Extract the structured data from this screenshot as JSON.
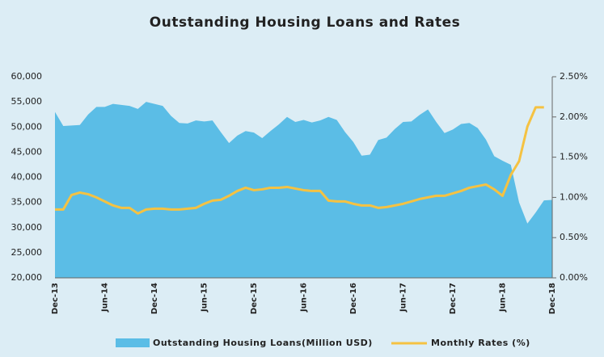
{
  "chart_data": {
    "type": "combo",
    "title": "Outstanding Housing Loans and Rates",
    "categories": [
      "Dec-13",
      null,
      null,
      null,
      null,
      null,
      "Jun-14",
      null,
      null,
      null,
      null,
      null,
      "Dec-14",
      null,
      null,
      null,
      null,
      null,
      "Jun-15",
      null,
      null,
      null,
      null,
      null,
      "Dec-15",
      null,
      null,
      null,
      null,
      null,
      "Jun-16",
      null,
      null,
      null,
      null,
      null,
      "Dec-16",
      null,
      null,
      null,
      null,
      null,
      "Jun-17",
      null,
      null,
      null,
      null,
      null,
      "Dec-17",
      null,
      null,
      null,
      null,
      null,
      "Jun-18",
      null,
      null,
      null,
      null,
      null,
      "Dec-18"
    ],
    "series": [
      {
        "name": "Outstanding Housing Loans(Million USD)",
        "type": "area",
        "color": "#5bbde6",
        "values": [
          53000,
          50200,
          50300,
          50400,
          52500,
          54000,
          54000,
          54600,
          54400,
          54200,
          53600,
          55000,
          54600,
          54200,
          52200,
          50800,
          50700,
          51300,
          51100,
          51300,
          49000,
          46800,
          48300,
          49200,
          48900,
          47800,
          49200,
          50500,
          52000,
          51000,
          51400,
          50900,
          51300,
          52000,
          51400,
          49000,
          47000,
          44300,
          44500,
          47400,
          47900,
          49600,
          51000,
          51100,
          52400,
          53500,
          51000,
          48800,
          49500,
          50600,
          50800,
          49800,
          47500,
          44200,
          43300,
          42500,
          35000,
          30800,
          33000,
          35400,
          35500
        ]
      },
      {
        "name": "Monthly Rates (%)",
        "type": "line",
        "axis": "y2",
        "color": "#f5c242",
        "values": [
          0.85,
          0.85,
          1.03,
          1.06,
          1.04,
          1.0,
          0.95,
          0.9,
          0.87,
          0.87,
          0.8,
          0.85,
          0.86,
          0.86,
          0.85,
          0.85,
          0.86,
          0.87,
          0.92,
          0.96,
          0.97,
          1.02,
          1.08,
          1.12,
          1.09,
          1.1,
          1.12,
          1.12,
          1.13,
          1.11,
          1.09,
          1.08,
          1.08,
          0.96,
          0.95,
          0.95,
          0.92,
          0.9,
          0.9,
          0.87,
          0.88,
          0.9,
          0.92,
          0.95,
          0.98,
          1.0,
          1.02,
          1.02,
          1.05,
          1.08,
          1.12,
          1.14,
          1.16,
          1.1,
          1.02,
          1.28,
          1.45,
          1.88,
          2.12,
          2.12,
          null
        ]
      }
    ],
    "ylim": [
      20000,
      60000
    ],
    "yticks": [
      {
        "value": 20000,
        "label": "20,000"
      },
      {
        "value": 25000,
        "label": "25,000"
      },
      {
        "value": 30000,
        "label": "30,000"
      },
      {
        "value": 35000,
        "label": "35,000"
      },
      {
        "value": 40000,
        "label": "40,000"
      },
      {
        "value": 45000,
        "label": "45,000"
      },
      {
        "value": 50000,
        "label": "50,000"
      },
      {
        "value": 55000,
        "label": "55,000"
      },
      {
        "value": 60000,
        "label": "60,000"
      }
    ],
    "y2lim": [
      0,
      2.5
    ],
    "y2ticks": [
      {
        "value": 0,
        "label": "0.00%"
      },
      {
        "value": 0.5,
        "label": "0.50%"
      },
      {
        "value": 1,
        "label": "1.00%"
      },
      {
        "value": 1.5,
        "label": "1.50%"
      },
      {
        "value": 2,
        "label": "2.00%"
      },
      {
        "value": 2.5,
        "label": "2.50%"
      }
    ],
    "legend": "bottom"
  }
}
